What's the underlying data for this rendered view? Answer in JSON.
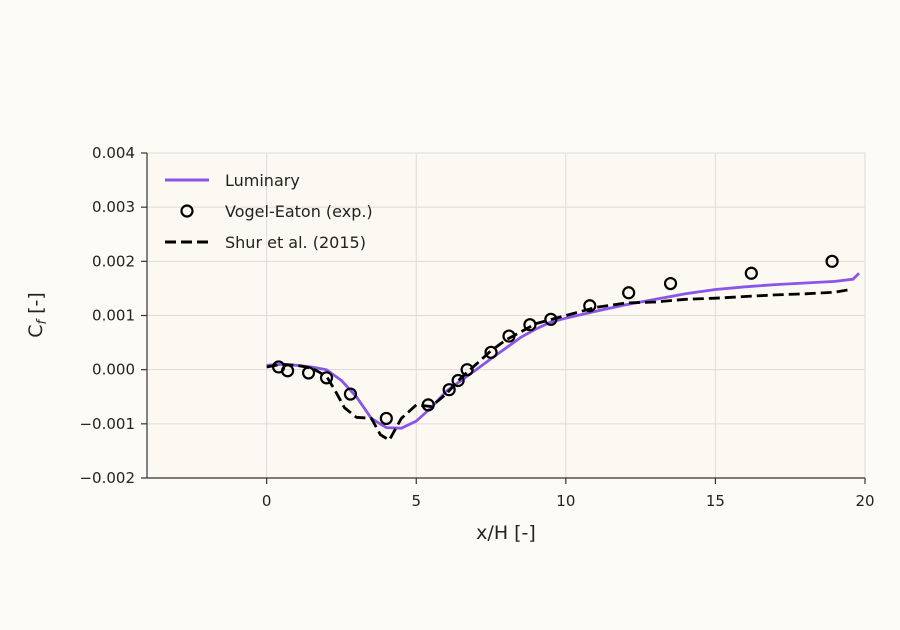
{
  "chart_data": {
    "type": "line",
    "title": "",
    "xlabel": "x/H [-]",
    "ylabel": "C",
    "ylabel_subscript": "f",
    "ylabel_suffix": " [-]",
    "xlim": [
      -4,
      20
    ],
    "ylim": [
      -0.002,
      0.004
    ],
    "xticks": [
      0,
      5,
      10,
      15,
      20
    ],
    "xtick_labels": [
      "0",
      "5",
      "10",
      "15",
      "20"
    ],
    "yticks": [
      -0.002,
      -0.001,
      0.0,
      0.001,
      0.002,
      0.003,
      0.004
    ],
    "ytick_labels": [
      "−0.002",
      "−0.001",
      "0.000",
      "0.001",
      "0.002",
      "0.003",
      "0.004"
    ],
    "grid": true,
    "legend_position": "top-left",
    "series": [
      {
        "name": "Luminary",
        "style": "solid",
        "color": "#8a55e8",
        "x": [
          0,
          0.5,
          1.0,
          1.5,
          2.0,
          2.5,
          3.0,
          3.5,
          4.0,
          4.5,
          5.0,
          5.5,
          6.0,
          6.5,
          7.0,
          7.5,
          8.0,
          8.5,
          9.0,
          9.5,
          10.0,
          11.0,
          12.0,
          13.0,
          14.0,
          15.0,
          16.0,
          17.0,
          18.0,
          19.0,
          19.6,
          19.8
        ],
        "y": [
          8e-05,
          0.0001,
          8e-05,
          5e-05,
          0.0,
          -0.0002,
          -0.0005,
          -0.0009,
          -0.00107,
          -0.00108,
          -0.00095,
          -0.0007,
          -0.0004,
          -0.0002,
          0.0,
          0.0002,
          0.0004,
          0.0006,
          0.00075,
          0.00088,
          0.00095,
          0.00108,
          0.0012,
          0.0013,
          0.0014,
          0.00148,
          0.00153,
          0.00157,
          0.0016,
          0.00163,
          0.00167,
          0.00178
        ]
      },
      {
        "name": "Vogel-Eaton (exp.)",
        "style": "markers",
        "color": "#000000",
        "x": [
          0.4,
          0.7,
          1.4,
          2.0,
          2.8,
          4.0,
          5.4,
          6.1,
          6.4,
          6.7,
          7.5,
          8.1,
          8.8,
          9.5,
          10.8,
          12.1,
          13.5,
          16.2,
          18.9
        ],
        "y": [
          5e-05,
          -2e-05,
          -6e-05,
          -0.00015,
          -0.00045,
          -0.0009,
          -0.00065,
          -0.00037,
          -0.0002,
          0.0,
          0.00032,
          0.00062,
          0.00083,
          0.00093,
          0.00118,
          0.00142,
          0.00159,
          0.00178,
          0.002
        ]
      },
      {
        "name": "Shur et al. (2015)",
        "style": "dashed",
        "color": "#000000",
        "x": [
          0,
          0.5,
          1.0,
          1.5,
          2.0,
          2.3,
          2.6,
          3.0,
          3.5,
          3.8,
          4.1,
          4.5,
          5.0,
          5.5,
          6.0,
          6.5,
          7.0,
          7.5,
          8.0,
          8.5,
          9.0,
          10.0,
          11.0,
          12.0,
          13.0,
          14.0,
          15.0,
          16.0,
          17.0,
          18.0,
          19.0,
          19.5
        ],
        "y": [
          5e-05,
          0.0001,
          8e-05,
          3e-05,
          -0.00012,
          -0.0004,
          -0.0007,
          -0.00088,
          -0.0009,
          -0.0012,
          -0.0013,
          -0.0009,
          -0.00065,
          -0.00068,
          -0.00045,
          -0.00015,
          0.0001,
          0.00035,
          0.00055,
          0.0007,
          0.00085,
          0.001,
          0.00115,
          0.00123,
          0.00125,
          0.0013,
          0.00132,
          0.00135,
          0.00138,
          0.0014,
          0.00143,
          0.00148
        ]
      }
    ]
  }
}
